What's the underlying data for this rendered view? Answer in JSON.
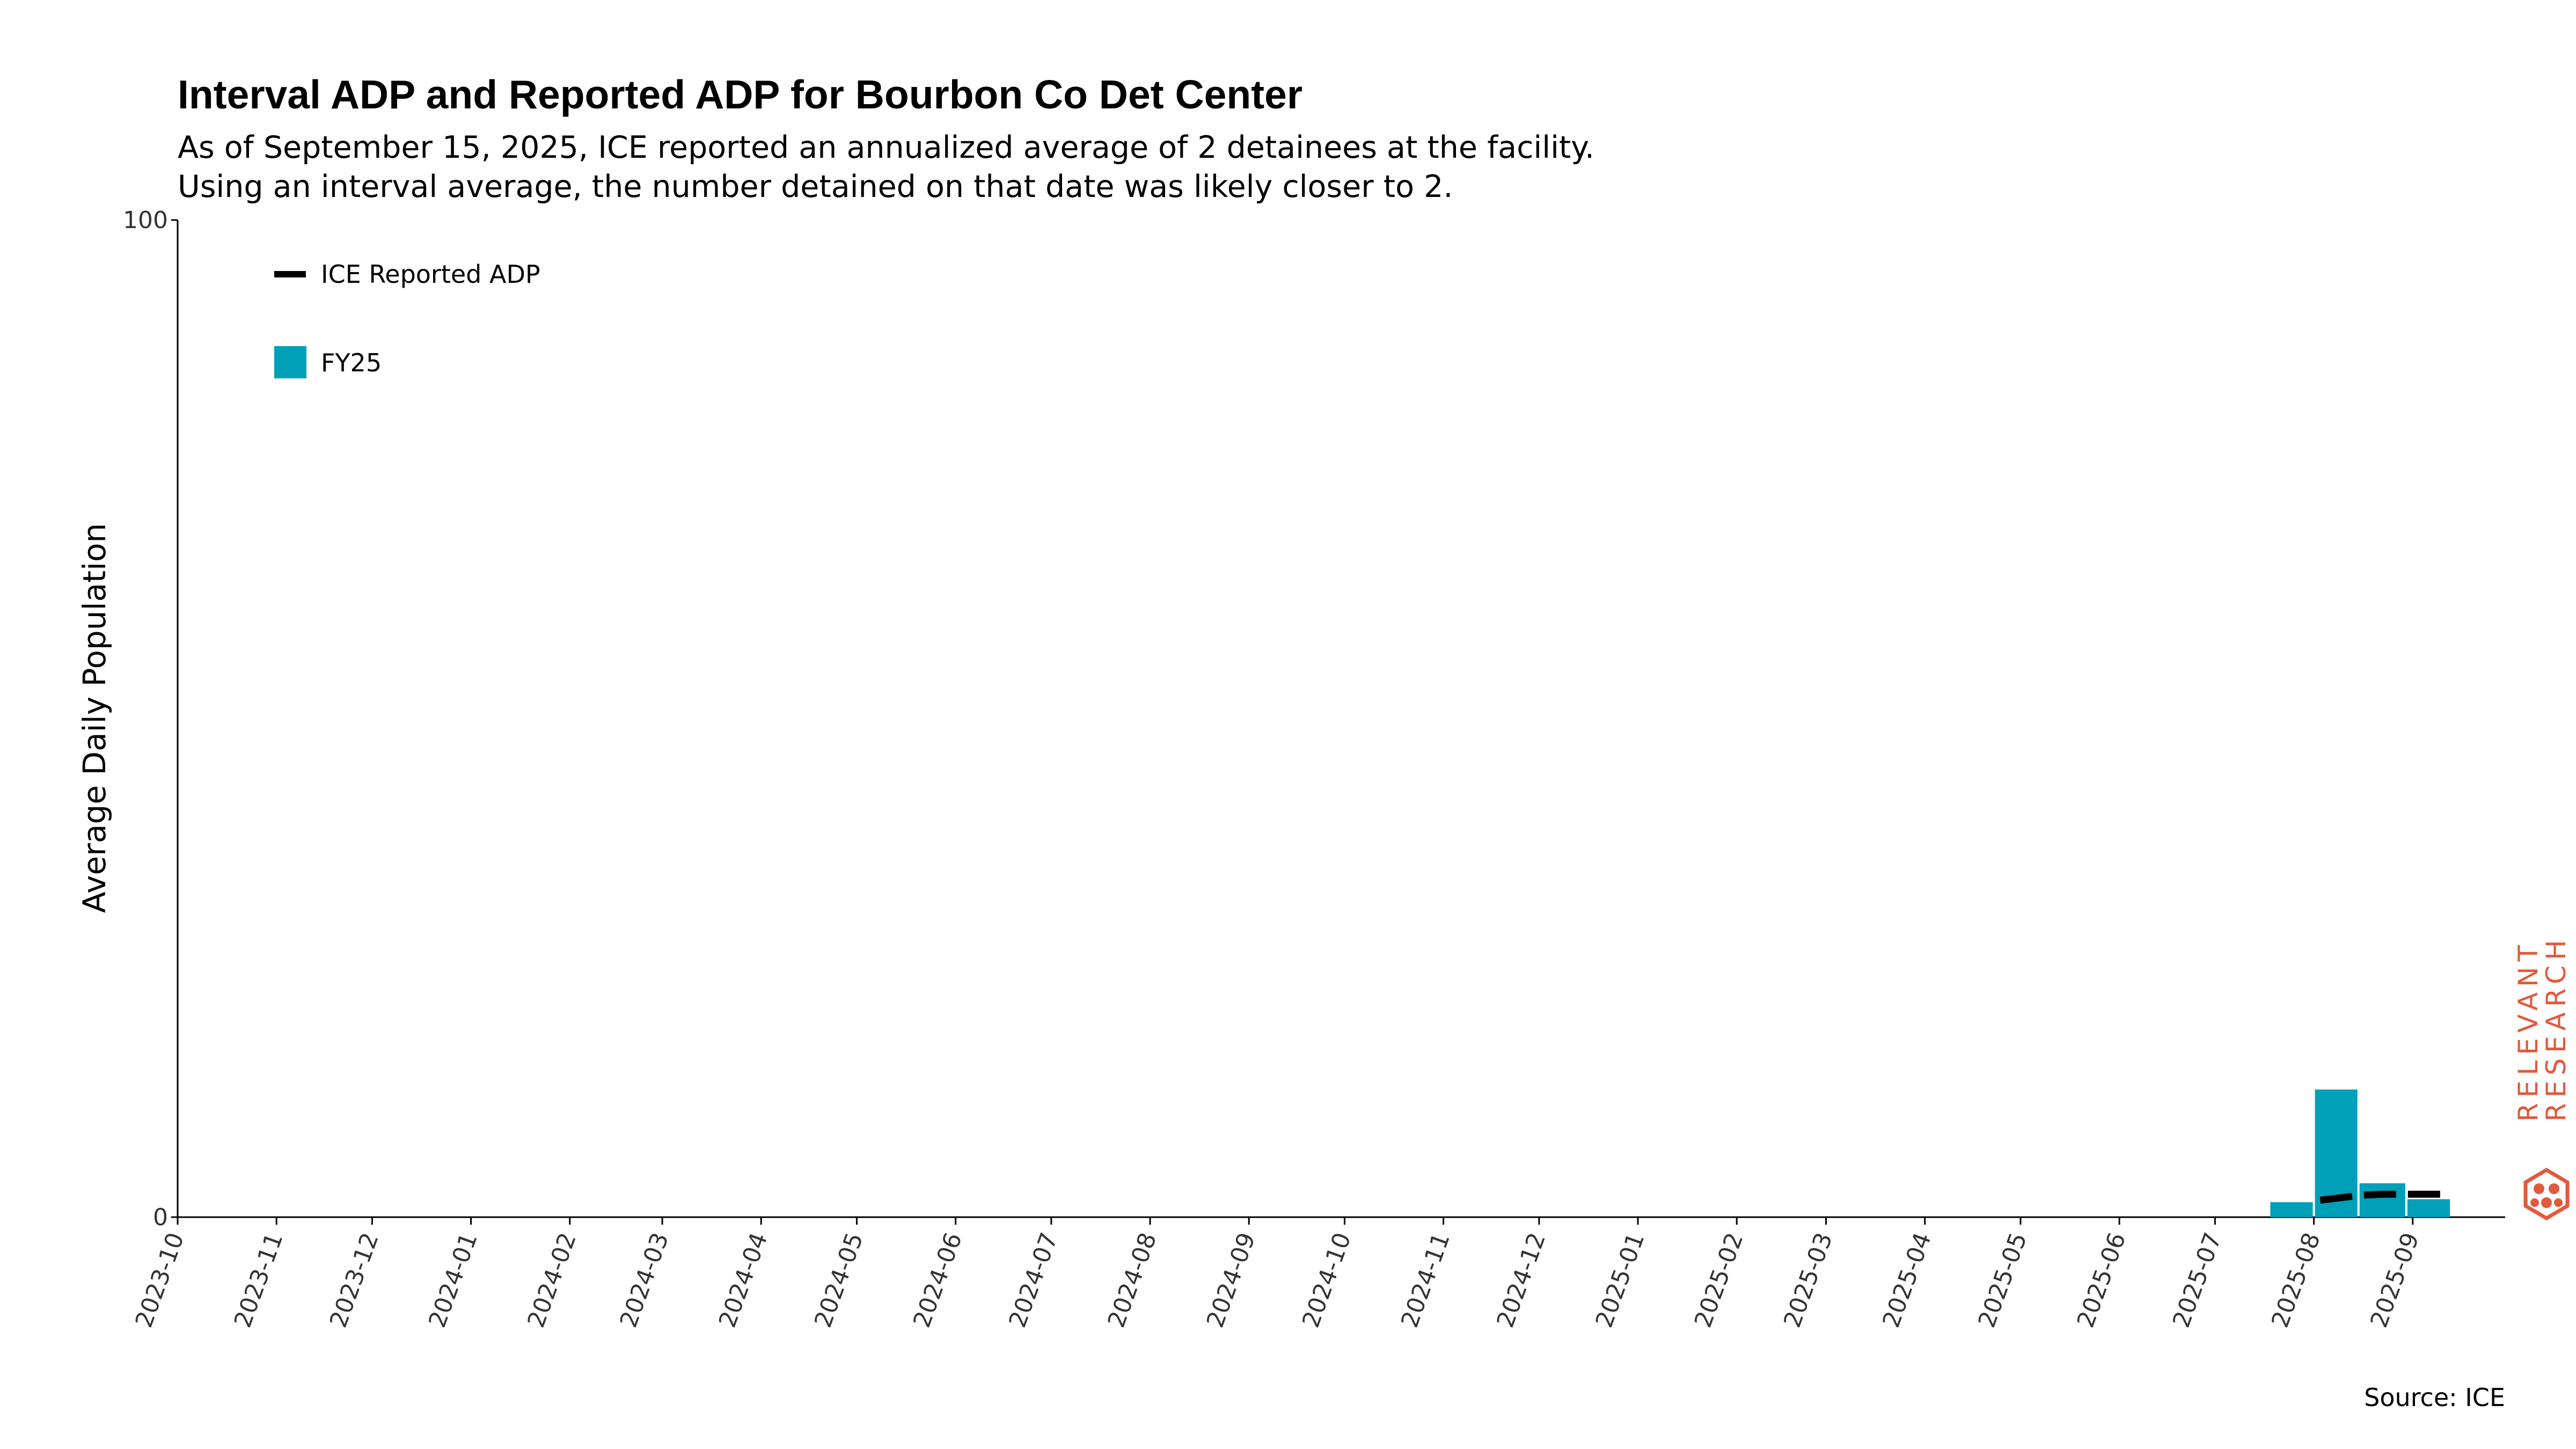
{
  "chart_data": {
    "type": "bar",
    "title": "Interval ADP and Reported ADP for Bourbon Co Det Center",
    "subtitle_lines": [
      "As of September 15, 2025, ICE reported an annualized average of 2 detainees at the facility.",
      "Using an interval average, the number detained on that date was likely closer to 2."
    ],
    "ylabel": "Average Daily Population",
    "ylim": [
      0,
      100
    ],
    "yticks": [
      "0",
      "100"
    ],
    "xlim": [
      "2023-10-01",
      "2025-09-30"
    ],
    "xticks": [
      "2023-10",
      "2023-11",
      "2023-12",
      "2024-01",
      "2024-02",
      "2024-03",
      "2024-04",
      "2024-05",
      "2024-06",
      "2024-07",
      "2024-08",
      "2024-09",
      "2024-10",
      "2024-11",
      "2024-12",
      "2025-01",
      "2025-02",
      "2025-03",
      "2025-04",
      "2025-05",
      "2025-06",
      "2025-07",
      "2025-08",
      "2025-09"
    ],
    "bars": [
      {
        "start": "2025-07-18",
        "end": "2025-07-31",
        "value": 1.5
      },
      {
        "start": "2025-08-01",
        "end": "2025-08-14",
        "value": 12.8
      },
      {
        "start": "2025-08-15",
        "end": "2025-08-29",
        "value": 3.4
      },
      {
        "start": "2025-08-30",
        "end": "2025-09-12",
        "value": 1.8
      }
    ],
    "reported_line": {
      "points": [
        {
          "x": "2025-08-03",
          "y": 1.7
        },
        {
          "x": "2025-08-16",
          "y": 2.2
        },
        {
          "x": "2025-08-23",
          "y": 2.3
        },
        {
          "x": "2025-09-13",
          "y": 2.3
        }
      ]
    },
    "legend": {
      "position": "top-left",
      "items": [
        {
          "label": "ICE Reported ADP",
          "kind": "line",
          "color": "#000000"
        },
        {
          "label": "FY25",
          "kind": "patch",
          "color": "#00a0b8"
        }
      ]
    },
    "bar_color": "#00a0b8",
    "line_color": "#000000",
    "grid": false
  },
  "source": "Source: ICE",
  "logo": {
    "line1": "RELEVANT",
    "line2": "RESEARCH",
    "color": "#e05a3c",
    "icon": "hexagon-molecule-icon"
  }
}
